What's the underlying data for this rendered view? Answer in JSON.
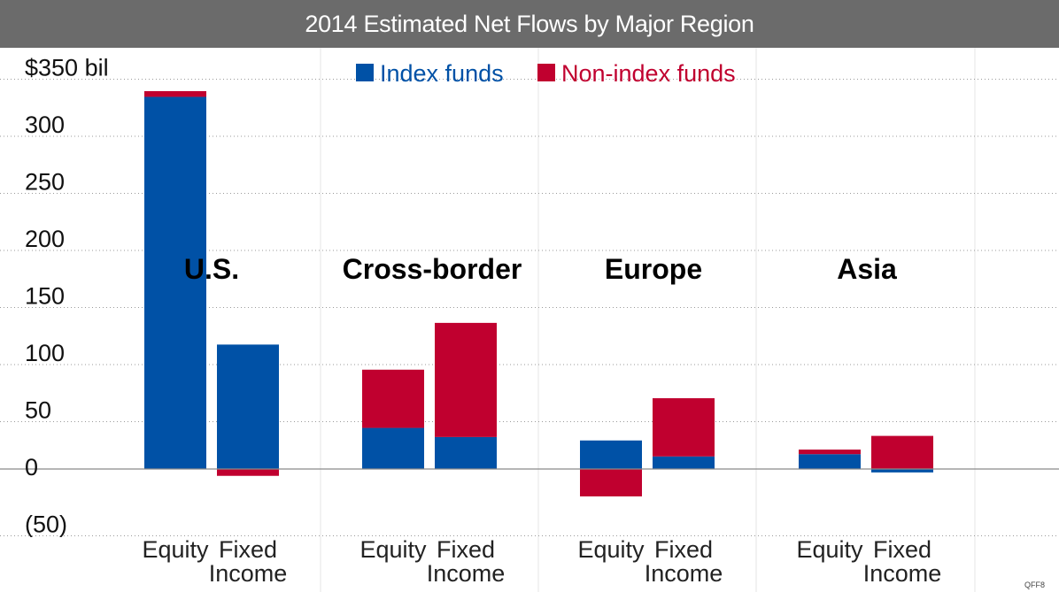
{
  "chart_data": {
    "type": "bar",
    "stacked": true,
    "title": "2014 Estimated Net Flows by Major Region",
    "ylabel": "",
    "ylim": [
      -50,
      350
    ],
    "yticks": [
      {
        "value": 350,
        "label": "$350 bil"
      },
      {
        "value": 300,
        "label": "300"
      },
      {
        "value": 250,
        "label": "250"
      },
      {
        "value": 200,
        "label": "200"
      },
      {
        "value": 150,
        "label": "150"
      },
      {
        "value": 100,
        "label": "100"
      },
      {
        "value": 50,
        "label": "50"
      },
      {
        "value": 0,
        "label": "0"
      },
      {
        "value": -50,
        "label": "(50)"
      }
    ],
    "regions": [
      "U.S.",
      "Cross-border",
      "Europe",
      "Asia"
    ],
    "categories": [
      {
        "region": "U.S.",
        "lines": [
          "Equity"
        ]
      },
      {
        "region": "U.S.",
        "lines": [
          "Fixed",
          "Income"
        ]
      },
      {
        "region": "Cross-border",
        "lines": [
          "Equity"
        ]
      },
      {
        "region": "Cross-border",
        "lines": [
          "Fixed",
          "Income"
        ]
      },
      {
        "region": "Europe",
        "lines": [
          "Equity"
        ]
      },
      {
        "region": "Europe",
        "lines": [
          "Fixed",
          "Income"
        ]
      },
      {
        "region": "Asia",
        "lines": [
          "Equity"
        ]
      },
      {
        "region": "Asia",
        "lines": [
          "Fixed",
          "Income"
        ]
      }
    ],
    "series": [
      {
        "name": "Index funds",
        "color": "#0051a6",
        "values": [
          326,
          109,
          36,
          28,
          25,
          11,
          13,
          -3
        ]
      },
      {
        "name": "Non-index funds",
        "color": "#c0002f",
        "values": [
          5,
          -6,
          51,
          100,
          -24,
          51,
          4,
          29
        ]
      }
    ],
    "legend_position": "top-center",
    "grid": true
  },
  "source_tag": "QFF8"
}
